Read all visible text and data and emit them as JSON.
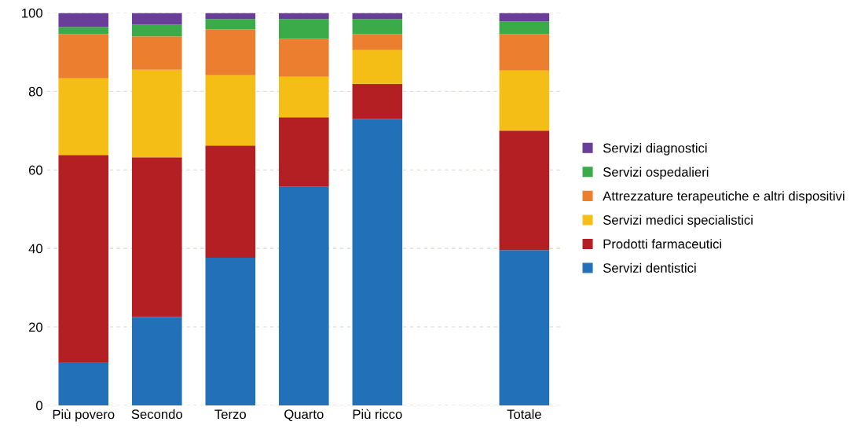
{
  "chart_data": {
    "type": "bar",
    "stacked": true,
    "categories": [
      "Più povero",
      "Secondo",
      "Terzo",
      "Quarto",
      "Più ricco",
      null,
      "Totale"
    ],
    "series": [
      {
        "name": "Servizi dentistici",
        "color": "#2271b8",
        "values": [
          11,
          22.5,
          37.6,
          55.7,
          73,
          null,
          39.6
        ]
      },
      {
        "name": "Prodotti farmaceutici",
        "color": "#b41f24",
        "values": [
          52.8,
          40.7,
          28.6,
          17.7,
          8.9,
          null,
          30.4
        ]
      },
      {
        "name": "Servizi medici specialistici",
        "color": "#f5be17",
        "values": [
          19.5,
          22.3,
          17.9,
          10.3,
          8.6,
          null,
          15.3
        ]
      },
      {
        "name": "Attrezzature terapeutiche e altri dispositivi",
        "color": "#ec7f2f",
        "values": [
          11.3,
          8.5,
          11.7,
          9.7,
          4.1,
          null,
          9.3
        ]
      },
      {
        "name": "Servizi ospedalieri",
        "color": "#3aab48",
        "values": [
          1.8,
          3,
          2.6,
          5,
          3.8,
          null,
          3.2
        ]
      },
      {
        "name": "Servizi diagnostici",
        "color": "#6a3d9a",
        "values": [
          3.6,
          3,
          1.6,
          1.6,
          1.6,
          null,
          2.2
        ]
      }
    ],
    "ylim": [
      0,
      100
    ],
    "yticks": [
      0,
      20,
      40,
      60,
      80,
      100
    ],
    "grid": "y",
    "legend": "right"
  }
}
